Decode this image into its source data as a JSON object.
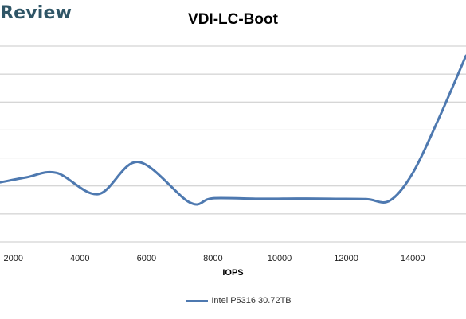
{
  "brand": {
    "text": "Review"
  },
  "chart_data": {
    "type": "line",
    "title": "VDI-LC-Boot",
    "xlabel": "IOPS",
    "ylabel": "",
    "xlim": [
      1600,
      15600
    ],
    "x_ticks": [
      2000,
      4000,
      6000,
      8000,
      10000,
      12000,
      14000
    ],
    "y_gridlines": 8,
    "grid": true,
    "legend_position": "bottom",
    "series": [
      {
        "name": "Intel P5316 30.72TB",
        "color": "#4e79b0",
        "x": [
          1600,
          2400,
          3300,
          4550,
          5750,
          7300,
          8000,
          9500,
          10500,
          11500,
          12600,
          13300,
          14000,
          14800,
          15600
        ],
        "y": [
          0.62,
          0.8,
          0.96,
          0.2,
          1.35,
          -0.1,
          0.05,
          0.03,
          0.04,
          0.03,
          0.02,
          -0.04,
          0.95,
          2.95,
          5.15
        ]
      }
    ]
  }
}
